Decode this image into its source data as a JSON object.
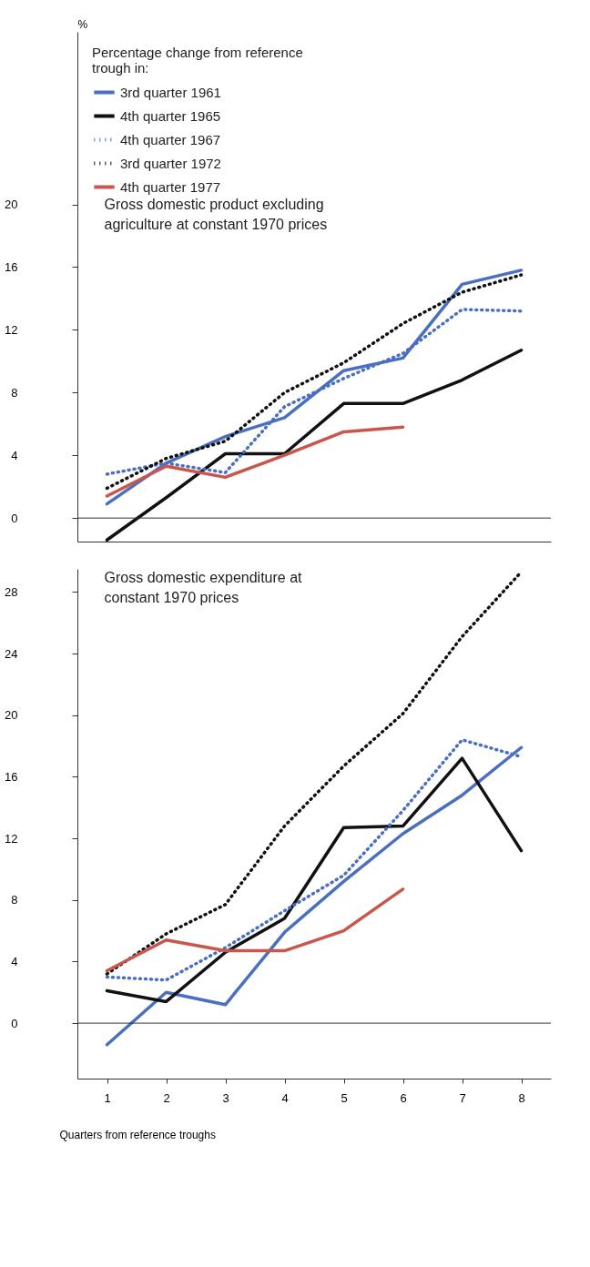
{
  "chart_data": [
    {
      "type": "line",
      "title": "Gross domestic product excluding agriculture at constant 1970 prices",
      "ylabel": "%",
      "legend_title": "Percentage change from reference trough in:",
      "legend": "top left",
      "grid": false,
      "tick_labels": "y",
      "x": [
        1,
        2,
        3,
        4,
        5,
        6,
        7,
        8
      ],
      "xlim": [
        0.5,
        8.5
      ],
      "ylim": [
        -1.5,
        31
      ],
      "yticks": [
        0,
        4,
        8,
        12,
        16,
        20
      ],
      "ref_lines": [
        {
          "axis": "y",
          "value": 0,
          "label": null
        }
      ],
      "series": [
        {
          "name": "3rd quarter 1961",
          "color": "#4a6fc0",
          "line_style": "solid",
          "values": [
            0.9,
            3.5,
            5.2,
            6.4,
            9.4,
            10.2,
            14.9,
            15.8
          ]
        },
        {
          "name": "4th quarter 1965",
          "color": "#111111",
          "line_style": "solid",
          "values": [
            -1.4,
            1.3,
            4.1,
            4.1,
            7.3,
            7.3,
            8.8,
            10.7
          ]
        },
        {
          "name": "4th quarter 1967",
          "color": "#4a6fc0",
          "line_style": "dotted",
          "values": [
            2.8,
            3.5,
            2.9,
            7.1,
            8.9,
            10.5,
            13.3,
            13.2
          ]
        },
        {
          "name": "3rd quarter 1972",
          "color": "#111111",
          "line_style": "dotted",
          "values": [
            1.9,
            3.8,
            4.9,
            8.0,
            9.9,
            12.4,
            14.4,
            15.5
          ]
        },
        {
          "name": "4th quarter 1977",
          "color": "#c9564c",
          "line_style": "solid",
          "values": [
            1.4,
            3.3,
            2.6,
            4.0,
            5.5,
            5.8,
            null,
            null
          ]
        }
      ]
    },
    {
      "type": "line",
      "title": "Gross domestic expenditure at constant 1970 prices",
      "xlabel": "Quarters from reference troughs",
      "legend": false,
      "grid": false,
      "x": [
        1,
        2,
        3,
        4,
        5,
        6,
        7,
        8
      ],
      "xlim": [
        0.5,
        8.5
      ],
      "xticks": [
        1,
        2,
        3,
        4,
        5,
        6,
        7,
        8
      ],
      "ylim": [
        -3.6,
        29.5
      ],
      "yticks": [
        0,
        4,
        8,
        12,
        16,
        20,
        24,
        28
      ],
      "ref_lines": [
        {
          "axis": "y",
          "value": 0,
          "label": null
        }
      ],
      "series": [
        {
          "color": "#4a6fc0",
          "line_style": "solid",
          "values": [
            -1.4,
            2.0,
            1.2,
            5.9,
            9.2,
            12.3,
            14.8,
            17.9
          ]
        },
        {
          "color": "#111111",
          "line_style": "solid",
          "values": [
            2.1,
            1.4,
            4.6,
            6.8,
            12.7,
            12.8,
            17.2,
            11.2
          ]
        },
        {
          "color": "#4a6fc0",
          "line_style": "dotted",
          "values": [
            3.0,
            2.8,
            4.9,
            7.3,
            9.6,
            13.8,
            18.4,
            17.3
          ]
        },
        {
          "color": "#111111",
          "line_style": "dotted",
          "values": [
            3.2,
            5.8,
            7.7,
            12.8,
            16.7,
            20.1,
            25.1,
            29.3
          ]
        },
        {
          "color": "#c9564c",
          "line_style": "solid",
          "values": [
            3.4,
            5.4,
            4.7,
            4.7,
            6.0,
            8.7,
            null,
            null
          ]
        }
      ]
    }
  ]
}
